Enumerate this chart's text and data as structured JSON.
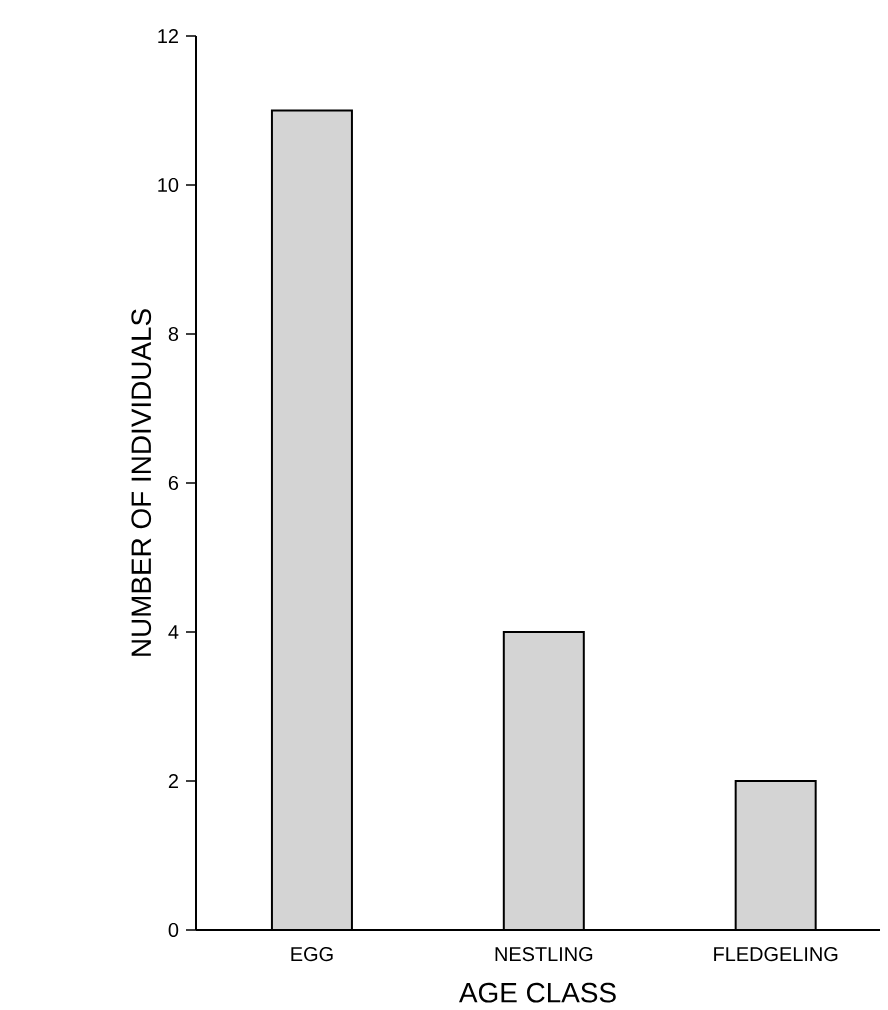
{
  "chart_data": {
    "type": "bar",
    "xlabel": "AGE CLASS",
    "ylabel": "NUMBER OF INDIVIDUALS",
    "categories": [
      "EGG",
      "NESTLING",
      "FLEDGELING"
    ],
    "values": [
      11,
      4,
      2
    ],
    "color": "#d4d4d4",
    "ylim": [
      0,
      12
    ],
    "yticks": [
      0,
      2,
      4,
      6,
      8,
      10,
      12
    ],
    "grid": false
  }
}
